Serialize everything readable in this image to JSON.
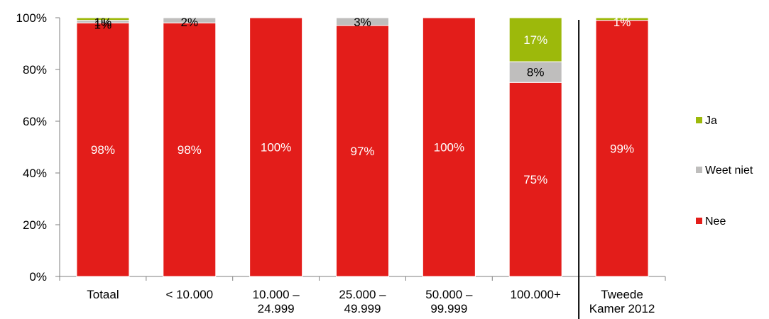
{
  "chart_data": {
    "type": "bar",
    "stacked": true,
    "categories": [
      [
        "Totaal"
      ],
      [
        "< 10.000"
      ],
      [
        "10.000 –",
        "24.999"
      ],
      [
        "25.000 –",
        "49.999"
      ],
      [
        "50.000 –",
        "99.999"
      ],
      [
        "100.000+"
      ],
      [
        "Tweede",
        "Kamer 2012"
      ]
    ],
    "series": [
      {
        "name": "Nee",
        "color": "#e31d1a",
        "label_color": "#ffffff",
        "values": [
          98,
          98,
          100,
          97,
          100,
          75,
          99
        ],
        "labels": [
          "98%",
          "98%",
          "100%",
          "97%",
          "100%",
          "75%",
          "99%"
        ]
      },
      {
        "name": "Weet niet",
        "color": "#bfbebd",
        "label_color": "#000000",
        "values": [
          1,
          2,
          0,
          3,
          0,
          8,
          0
        ],
        "labels": [
          "1%",
          "2%",
          "",
          "3%",
          "",
          "8%",
          ""
        ]
      },
      {
        "name": "Ja",
        "color": "#9db90b",
        "label_color": "#ffffff",
        "values": [
          1,
          0,
          0,
          0,
          0,
          17,
          1
        ],
        "labels": [
          "1%",
          "",
          "",
          "",
          "",
          "17%",
          "1%"
        ]
      }
    ],
    "y_ticks": [
      "0%",
      "20%",
      "40%",
      "60%",
      "80%",
      "100%"
    ],
    "ylim": [
      0,
      100
    ],
    "title": "",
    "xlabel": "",
    "ylabel": "",
    "legend_position": "right",
    "legend_order": [
      "Ja",
      "Weet niet",
      "Nee"
    ],
    "grid": false,
    "separator_before_last_category": true
  }
}
